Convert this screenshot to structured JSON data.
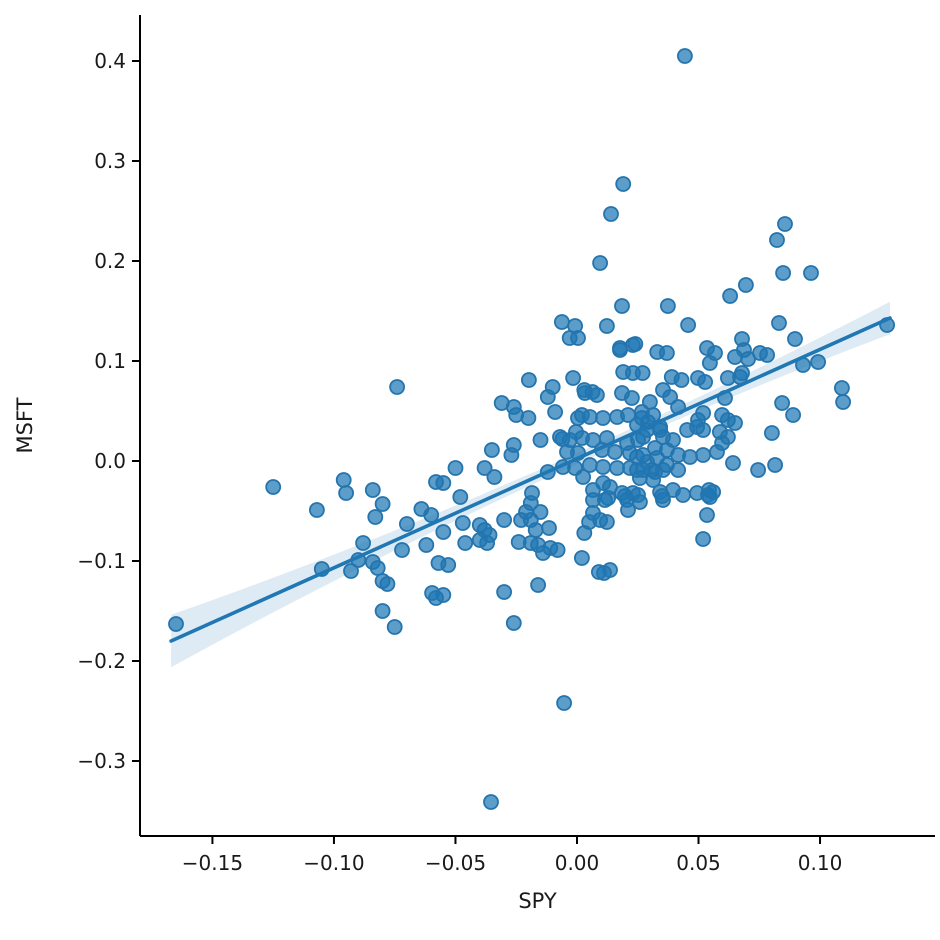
{
  "figure": {
    "background": "#ffffff"
  },
  "chart_data": {
    "type": "scatter",
    "title": "",
    "xlabel": "SPY",
    "ylabel": "MSFT",
    "grid": false,
    "legend_position": "none",
    "xlim": [
      -0.1798,
      0.1473
    ],
    "ylim": [
      -0.375,
      0.446
    ],
    "x_ticks": [
      -0.15,
      -0.1,
      -0.05,
      0.0,
      0.05,
      0.1
    ],
    "x_tick_labels": [
      "−0.15",
      "−0.10",
      "−0.05",
      "0.00",
      "0.05",
      "0.10"
    ],
    "y_ticks": [
      0.4,
      0.3,
      0.2,
      0.1,
      0.0,
      -0.1,
      -0.2,
      -0.3
    ],
    "y_tick_labels": [
      "0.4",
      "0.3",
      "0.2",
      "0.1",
      "0.0",
      "−0.1",
      "−0.2",
      "−0.3"
    ],
    "regression_line": {
      "slope": 1.092,
      "intercept": 0.0024,
      "x_start": -0.167,
      "x_end": 0.1288
    },
    "confidence_band": {
      "w_min": 0.0055,
      "k": 0.7,
      "x_center": 0.005
    },
    "colors": {
      "point_fill": "rgba(31,119,180,0.72)",
      "point_edge": "#2474ae",
      "line": "#1f77b4",
      "band": "rgba(31,119,180,0.15)",
      "spine": "#000000",
      "tick": "#000000",
      "text": "#1a1a1a"
    },
    "marker": {
      "radius": 7,
      "edge_width": 1.8
    },
    "points": [
      [
        0.0444,
        0.405
      ],
      [
        0.019,
        0.277
      ],
      [
        0.014,
        0.247
      ],
      [
        0.0095,
        0.198
      ],
      [
        0.0856,
        0.237
      ],
      [
        0.0823,
        0.221
      ],
      [
        0.0963,
        0.188
      ],
      [
        0.0848,
        0.188
      ],
      [
        0.0695,
        0.176
      ],
      [
        0.063,
        0.165
      ],
      [
        0.0374,
        0.155
      ],
      [
        0.0185,
        0.155
      ],
      [
        0.0457,
        0.136
      ],
      [
        -0.0062,
        0.139
      ],
      [
        -0.0008,
        0.135
      ],
      [
        0.0123,
        0.135
      ],
      [
        0.0831,
        0.138
      ],
      [
        0.0679,
        0.122
      ],
      [
        0.0897,
        0.122
      ],
      [
        0.0687,
        0.111
      ],
      [
        0.0177,
        0.113
      ],
      [
        0.023,
        0.116
      ],
      [
        0.0535,
        0.113
      ],
      [
        0.0568,
        0.108
      ],
      [
        0.0753,
        0.108
      ],
      [
        0.065,
        0.104
      ],
      [
        0.0704,
        0.102
      ],
      [
        0.0547,
        0.098
      ],
      [
        0.0782,
        0.106
      ],
      [
        0.093,
        0.096
      ],
      [
        0.0992,
        0.099
      ],
      [
        0.1276,
        0.136
      ],
      [
        0.0621,
        0.083
      ],
      [
        0.0671,
        0.084
      ],
      [
        0.0679,
        0.088
      ],
      [
        0.0609,
        0.063
      ],
      [
        0.109,
        0.073
      ],
      [
        0.1095,
        0.059
      ],
      [
        0.0844,
        0.058
      ],
      [
        0.0889,
        0.046
      ],
      [
        -0.074,
        0.074
      ],
      [
        -0.031,
        0.058
      ],
      [
        -0.026,
        0.054
      ],
      [
        -0.025,
        0.046
      ],
      [
        -0.02,
        0.043
      ],
      [
        -0.0198,
        0.081
      ],
      [
        -0.01,
        0.074
      ],
      [
        -0.012,
        0.064
      ],
      [
        -0.009,
        0.049
      ],
      [
        -0.035,
        0.011
      ],
      [
        -0.038,
        -0.007
      ],
      [
        -0.034,
        -0.016
      ],
      [
        -0.026,
        0.016
      ],
      [
        -0.027,
        0.006
      ],
      [
        -0.05,
        -0.007
      ],
      [
        -0.055,
        -0.022
      ],
      [
        -0.048,
        -0.036
      ],
      [
        -0.0016,
        0.083
      ],
      [
        0.003,
        0.071
      ],
      [
        0.0064,
        0.069
      ],
      [
        -0.0004,
        0.029
      ],
      [
        0.002,
        0.046
      ],
      [
        -0.015,
        0.021
      ],
      [
        -0.006,
        0.022
      ],
      [
        -0.012,
        -0.011
      ],
      [
        0.0025,
        -0.016
      ],
      [
        0.0066,
        -0.029
      ],
      [
        0.0108,
        -0.022
      ],
      [
        0.0177,
        0.111
      ],
      [
        0.024,
        0.117
      ],
      [
        0.019,
        0.089
      ],
      [
        0.023,
        0.088
      ],
      [
        0.027,
        0.088
      ],
      [
        0.033,
        0.109
      ],
      [
        0.037,
        0.108
      ],
      [
        0.039,
        0.084
      ],
      [
        0.043,
        0.081
      ],
      [
        0.03,
        0.059
      ],
      [
        0.0354,
        0.071
      ],
      [
        0.0416,
        0.054
      ],
      [
        0.0267,
        0.049
      ],
      [
        0.0292,
        0.039
      ],
      [
        0.0342,
        0.034
      ],
      [
        0.0272,
        0.024
      ],
      [
        0.0354,
        0.024
      ],
      [
        0.0247,
        0.004
      ],
      [
        0.0288,
        -0.001
      ],
      [
        0.0329,
        0.003
      ],
      [
        0.0247,
        -0.009
      ],
      [
        0.0309,
        -0.009
      ],
      [
        0.0354,
        -0.009
      ],
      [
        0.0395,
        0.021
      ],
      [
        0.0453,
        0.031
      ],
      [
        0.0494,
        0.034
      ],
      [
        0.0519,
        0.048
      ],
      [
        0.0498,
        0.083
      ],
      [
        0.0527,
        0.079
      ],
      [
        0.0543,
        -0.029
      ],
      [
        -0.003,
        0.123
      ],
      [
        0.0004,
        0.123
      ],
      [
        0.0033,
        0.068
      ],
      [
        0.0082,
        0.066
      ],
      [
        0.0185,
        0.068
      ],
      [
        0.0226,
        0.063
      ],
      [
        0.0383,
        0.064
      ],
      [
        0.0004,
        0.043
      ],
      [
        0.0053,
        0.044
      ],
      [
        0.0107,
        0.043
      ],
      [
        0.0165,
        0.044
      ],
      [
        0.021,
        0.046
      ],
      [
        0.0267,
        0.043
      ],
      [
        0.0313,
        0.046
      ],
      [
        0.0247,
        0.036
      ],
      [
        0.0288,
        0.031
      ],
      [
        0.0342,
        0.031
      ],
      [
        0.0498,
        0.041
      ],
      [
        0.0519,
        0.031
      ],
      [
        -0.007,
        0.024
      ],
      [
        -0.0029,
        0.021
      ],
      [
        0.0021,
        0.023
      ],
      [
        -0.0041,
        0.009
      ],
      [
        0.0004,
        0.008
      ],
      [
        0.0066,
        0.021
      ],
      [
        0.0123,
        0.023
      ],
      [
        0.0103,
        0.011
      ],
      [
        0.0156,
        0.009
      ],
      [
        0.0206,
        0.018
      ],
      [
        0.0251,
        0.021
      ],
      [
        0.0218,
        0.008
      ],
      [
        0.0272,
        0.006
      ],
      [
        0.0321,
        0.013
      ],
      [
        0.037,
        0.011
      ],
      [
        0.0416,
        0.006
      ],
      [
        0.0465,
        0.004
      ],
      [
        0.0519,
        0.006
      ],
      [
        -0.0058,
        -0.006
      ],
      [
        -0.0008,
        -0.007
      ],
      [
        0.0053,
        -0.004
      ],
      [
        0.0107,
        -0.006
      ],
      [
        0.0165,
        -0.007
      ],
      [
        0.0218,
        -0.007
      ],
      [
        0.0272,
        -0.009
      ],
      [
        0.0321,
        -0.011
      ],
      [
        0.037,
        -0.004
      ],
      [
        0.0416,
        -0.009
      ],
      [
        0.0259,
        -0.017
      ],
      [
        0.0313,
        -0.019
      ],
      [
        0.0136,
        -0.026
      ],
      [
        0.0185,
        -0.032
      ],
      [
        0.023,
        -0.032
      ],
      [
        0.0342,
        -0.031
      ],
      [
        0.0395,
        -0.029
      ],
      [
        0.0436,
        -0.034
      ],
      [
        0.0494,
        -0.032
      ],
      [
        0.0539,
        -0.034
      ],
      [
        0.0066,
        -0.039
      ],
      [
        0.0206,
        -0.039
      ],
      [
        0.0259,
        -0.041
      ],
      [
        0.0354,
        -0.039
      ],
      [
        0.0128,
        -0.037
      ],
      [
        0.0198,
        -0.035
      ],
      [
        0.0251,
        -0.034
      ],
      [
        0.021,
        -0.049
      ],
      [
        0.0115,
        -0.039
      ],
      [
        0.035,
        -0.035
      ],
      [
        0.0123,
        -0.061
      ],
      [
        0.0095,
        -0.059
      ],
      [
        0.0547,
        -0.036
      ],
      [
        0.0535,
        -0.054
      ],
      [
        0.0519,
        -0.078
      ],
      [
        0.0136,
        -0.109
      ],
      [
        0.0111,
        -0.112
      ],
      [
        0.0576,
        0.009
      ],
      [
        0.0642,
        -0.002
      ],
      [
        0.0745,
        -0.009
      ],
      [
        0.0815,
        -0.004
      ],
      [
        0.056,
        -0.031
      ],
      [
        0.0802,
        0.028
      ],
      [
        0.0597,
        0.046
      ],
      [
        0.0621,
        0.041
      ],
      [
        0.065,
        0.038
      ],
      [
        0.0588,
        0.029
      ],
      [
        0.0621,
        0.024
      ],
      [
        0.0597,
        0.018
      ],
      [
        -0.125,
        -0.026
      ],
      [
        -0.107,
        -0.049
      ],
      [
        -0.096,
        -0.019
      ],
      [
        -0.095,
        -0.032
      ],
      [
        -0.084,
        -0.029
      ],
      [
        -0.08,
        -0.043
      ],
      [
        -0.083,
        -0.056
      ],
      [
        -0.064,
        -0.048
      ],
      [
        -0.07,
        -0.063
      ],
      [
        -0.06,
        -0.054
      ],
      [
        -0.058,
        -0.021
      ],
      [
        -0.088,
        -0.082
      ],
      [
        -0.072,
        -0.089
      ],
      [
        -0.062,
        -0.084
      ],
      [
        -0.105,
        -0.108
      ],
      [
        -0.093,
        -0.11
      ],
      [
        -0.09,
        -0.099
      ],
      [
        -0.084,
        -0.101
      ],
      [
        -0.082,
        -0.107
      ],
      [
        -0.08,
        -0.12
      ],
      [
        -0.078,
        -0.123
      ],
      [
        -0.0596,
        -0.132
      ],
      [
        -0.055,
        -0.134
      ],
      [
        -0.058,
        -0.137
      ],
      [
        -0.08,
        -0.15
      ],
      [
        -0.075,
        -0.166
      ],
      [
        -0.165,
        -0.163
      ],
      [
        -0.055,
        -0.071
      ],
      [
        -0.053,
        -0.104
      ],
      [
        -0.057,
        -0.102
      ],
      [
        -0.047,
        -0.062
      ],
      [
        -0.046,
        -0.082
      ],
      [
        -0.04,
        -0.064
      ],
      [
        -0.038,
        -0.069
      ],
      [
        -0.036,
        -0.074
      ],
      [
        -0.04,
        -0.079
      ],
      [
        -0.037,
        -0.082
      ],
      [
        -0.03,
        -0.059
      ],
      [
        -0.03,
        -0.131
      ],
      [
        -0.026,
        -0.162
      ],
      [
        -0.023,
        -0.059
      ],
      [
        -0.021,
        -0.051
      ],
      [
        -0.019,
        -0.042
      ],
      [
        -0.024,
        -0.081
      ],
      [
        -0.019,
        -0.082
      ],
      [
        -0.016,
        -0.084
      ],
      [
        -0.017,
        -0.069
      ],
      [
        -0.015,
        -0.051
      ],
      [
        -0.0115,
        -0.067
      ],
      [
        -0.016,
        -0.124
      ],
      [
        -0.014,
        -0.092
      ],
      [
        -0.011,
        -0.087
      ],
      [
        -0.008,
        -0.089
      ],
      [
        0.002,
        -0.097
      ],
      [
        0.003,
        -0.072
      ],
      [
        0.005,
        -0.061
      ],
      [
        0.0066,
        -0.052
      ],
      [
        0.009,
        -0.111
      ],
      [
        -0.0053,
        -0.242
      ],
      [
        -0.0354,
        -0.341
      ],
      [
        -0.019,
        -0.059
      ],
      [
        -0.0185,
        -0.032
      ]
    ]
  }
}
